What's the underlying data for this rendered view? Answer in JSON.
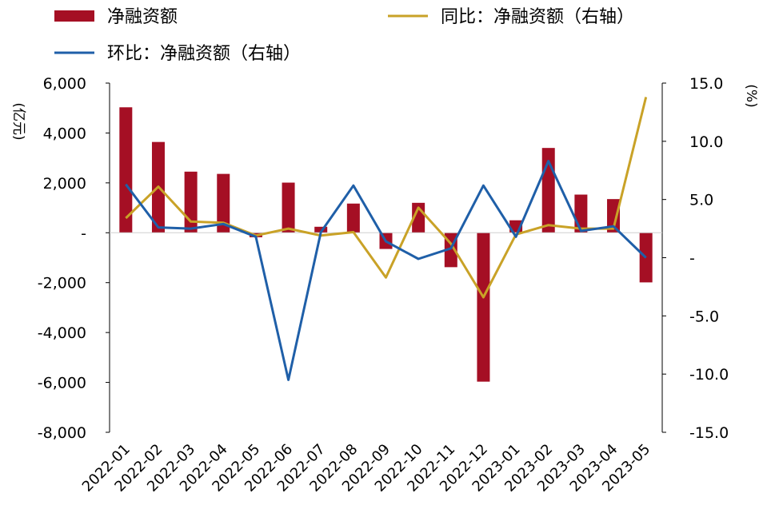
{
  "chart_data": {
    "type": "bar+line",
    "categories": [
      "2022-01",
      "2022-02",
      "2022-03",
      "2022-04",
      "2022-05",
      "2022-06",
      "2022-07",
      "2022-08",
      "2022-09",
      "2022-10",
      "2022-11",
      "2022-12",
      "2023-01",
      "2023-02",
      "2023-03",
      "2023-04",
      "2023-05"
    ],
    "series": [
      {
        "name": "净融资额",
        "type": "bar",
        "axis": "left",
        "color": "#A50F24",
        "values": [
          5030,
          3640,
          2450,
          2360,
          -180,
          2010,
          240,
          1170,
          -650,
          1200,
          -1380,
          -5970,
          500,
          3400,
          1530,
          1350,
          -1990
        ]
      },
      {
        "name": "同比：净融资额（右轴）",
        "type": "line",
        "axis": "right",
        "color": "#C9A227",
        "values": [
          3.4,
          6.1,
          3.1,
          3.0,
          1.9,
          2.5,
          1.9,
          2.2,
          -1.7,
          4.3,
          1.2,
          -3.4,
          2.0,
          2.8,
          2.5,
          2.5,
          13.8
        ]
      },
      {
        "name": "环比：净融资额（右轴）",
        "type": "line",
        "axis": "right",
        "color": "#1F5FA8",
        "values": [
          6.3,
          2.6,
          2.5,
          2.9,
          1.8,
          -10.5,
          2.2,
          6.2,
          1.4,
          -0.1,
          0.8,
          6.2,
          1.8,
          8.3,
          2.3,
          2.7,
          0.0
        ]
      }
    ],
    "y_left": {
      "label": "(亿元)",
      "ylim": [
        -8000,
        6000
      ],
      "ticks": [
        "6,000",
        "4,000",
        "2,000",
        "-",
        "-2,000",
        "-4,000",
        "-6,000",
        "-8,000"
      ]
    },
    "y_right": {
      "label": "(%)",
      "ylim": [
        -15,
        15
      ],
      "ticks": [
        "15.0",
        "10.0",
        "5.0",
        "-",
        "-5.0",
        "-10.0",
        "-15.0"
      ]
    },
    "legend_position": "top",
    "grid": false
  }
}
